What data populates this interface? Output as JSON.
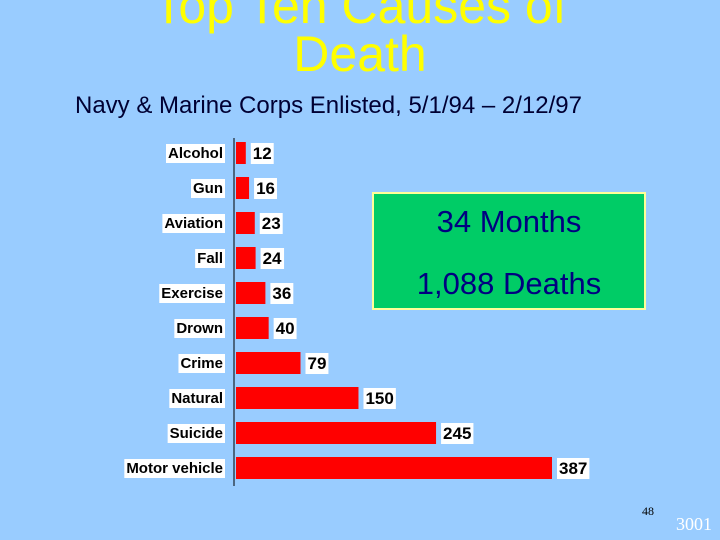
{
  "title_line1": "Top Ten Causes of",
  "title_line2": "Death",
  "subtitle": "Navy & Marine Corps Enlisted, 5/1/94 – 2/12/97",
  "info_box": {
    "line1": "34 Months",
    "line2": "1,088 Deaths"
  },
  "page_number": "48",
  "slide_code": "3001",
  "colors": {
    "background": "#99ccff",
    "title": "#ffff00",
    "bar": "#ff0000",
    "label_box": "#ffffff",
    "info_box": "#00cc66"
  },
  "chart_data": {
    "type": "bar",
    "orientation": "horizontal",
    "categories": [
      "Alcohol",
      "Gun",
      "Aviation",
      "Fall",
      "Exercise",
      "Drown",
      "Crime",
      "Natural",
      "Suicide",
      "Motor vehicle"
    ],
    "values": [
      12,
      16,
      23,
      24,
      36,
      40,
      79,
      150,
      245,
      387
    ],
    "value_labels": [
      "12",
      "16",
      "23",
      "24",
      "36",
      "40",
      "79",
      "150",
      "245",
      "387"
    ],
    "xlim": [
      0,
      387
    ],
    "grid": false
  }
}
